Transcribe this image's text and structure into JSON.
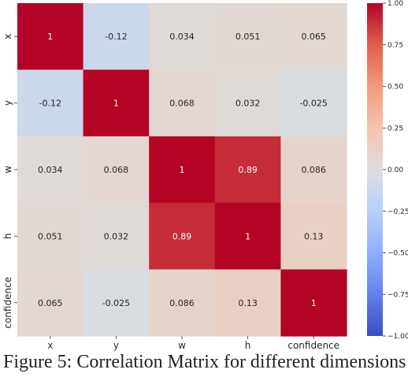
{
  "chart_data": {
    "type": "heatmap",
    "title": "",
    "xlabel": "",
    "ylabel": "",
    "x_labels": [
      "x",
      "y",
      "w",
      "h",
      "confidence"
    ],
    "y_labels": [
      "x",
      "y",
      "w",
      "h",
      "confidence"
    ],
    "values": [
      [
        1,
        -0.12,
        0.034,
        0.051,
        0.065
      ],
      [
        -0.12,
        1,
        0.068,
        0.032,
        -0.025
      ],
      [
        0.034,
        0.068,
        1,
        0.89,
        0.086
      ],
      [
        0.051,
        0.032,
        0.89,
        1,
        0.13
      ],
      [
        0.065,
        -0.025,
        0.086,
        0.13,
        1
      ]
    ],
    "annotations": [
      [
        "1",
        "-0.12",
        "0.034",
        "0.051",
        "0.065"
      ],
      [
        "-0.12",
        "1",
        "0.068",
        "0.032",
        "-0.025"
      ],
      [
        "0.034",
        "0.068",
        "1",
        "0.89",
        "0.086"
      ],
      [
        "0.051",
        "0.032",
        "0.89",
        "1",
        "0.13"
      ],
      [
        "0.065",
        "-0.025",
        "0.086",
        "0.13",
        "1"
      ]
    ],
    "colormap": "coolwarm",
    "vmin": -1.0,
    "vmax": 1.0,
    "colorbar_ticks": [
      "1.00",
      "0.75",
      "0.50",
      "0.25",
      "0.00",
      "−0.25",
      "−0.50",
      "−0.75",
      "−1.00"
    ],
    "colorbar_tick_values": [
      1.0,
      0.75,
      0.5,
      0.25,
      0.0,
      -0.25,
      -0.5,
      -0.75,
      -1.0
    ],
    "grid": false
  },
  "caption": "Figure 5: Correlation Matrix for different dimensions"
}
